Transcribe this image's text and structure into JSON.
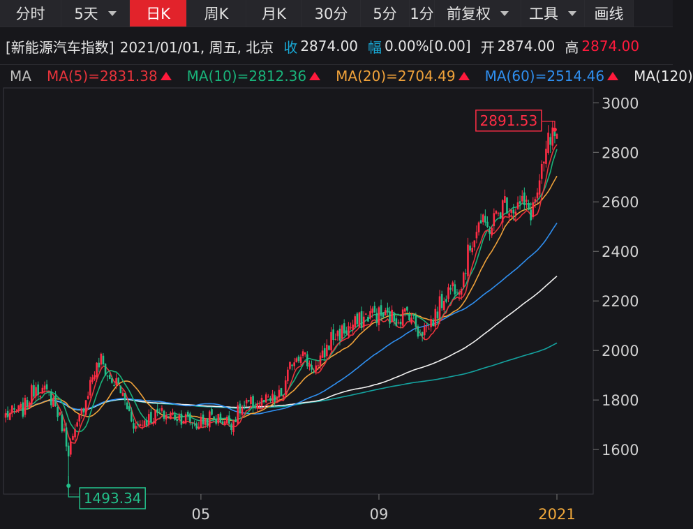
{
  "tabs": [
    {
      "label": "分时",
      "active": false,
      "dropdown": false
    },
    {
      "label": "5天",
      "active": false,
      "dropdown": true
    },
    {
      "label": "日K",
      "active": true,
      "dropdown": false
    },
    {
      "label": "周K",
      "active": false,
      "dropdown": false
    },
    {
      "label": "月K",
      "active": false,
      "dropdown": false
    },
    {
      "label": "30分",
      "active": false,
      "dropdown": false
    },
    {
      "label": "5分",
      "active": false,
      "dropdown": false
    },
    {
      "label": "1分",
      "active": false,
      "dropdown": false
    },
    {
      "label": "前复权",
      "active": false,
      "dropdown": true
    },
    {
      "label": "工具",
      "active": false,
      "dropdown": true
    },
    {
      "label": "画线",
      "active": false,
      "dropdown": false
    }
  ],
  "info": {
    "name": "[新能源汽车指数]",
    "datetime": "2021/01/01, 周五, 北京",
    "close_label": "收",
    "close": "2874.00",
    "change_label": "幅",
    "change": "0.00%[0.00]",
    "open_label": "开",
    "open": "2874.00",
    "high_label": "高",
    "high": "2874.00"
  },
  "ma_bar": {
    "label": "MA",
    "items": [
      {
        "text": "MA(5)=2831.38",
        "color": "#e8333b"
      },
      {
        "text": "MA(10)=2812.36",
        "color": "#19b37a"
      },
      {
        "text": "MA(20)=2704.49",
        "color": "#f0a23a"
      },
      {
        "text": "MA(60)=2514.46",
        "color": "#2f8ff0"
      },
      {
        "text": "MA(120)",
        "color": "#ececec"
      }
    ]
  },
  "colors": {
    "up": "#ff2d45",
    "down": "#23c08a",
    "ma5": "#e8333b",
    "ma10": "#19b37a",
    "ma20": "#f0a23a",
    "ma60": "#2f8ff0",
    "ma120": "#f2f2f2",
    "ma250": "#14a3a0",
    "grid": "#3a3a40",
    "axis_text": "#d2d2d2",
    "date_highlight": "#f2a93b"
  },
  "chart_data": {
    "type": "candlestick",
    "title": "新能源汽车指数",
    "ylim": [
      1420,
      3060
    ],
    "yticks": [
      1600,
      1800,
      2000,
      2200,
      2400,
      2600,
      2800,
      3000
    ],
    "xticks": [
      {
        "label": "05",
        "index": 90,
        "highlight": false
      },
      {
        "label": "09",
        "index": 172,
        "highlight": false
      },
      {
        "label": "2021",
        "index": 254,
        "highlight": true
      }
    ],
    "max_label": "2891.53",
    "max_value": 2891.53,
    "max_index": 253,
    "min_label": "1493.34",
    "min_value": 1493.34,
    "min_index": 29,
    "anchors": [
      [
        0,
        1740
      ],
      [
        8,
        1760
      ],
      [
        14,
        1860
      ],
      [
        18,
        1830
      ],
      [
        22,
        1800
      ],
      [
        26,
        1700
      ],
      [
        29,
        1600
      ],
      [
        32,
        1660
      ],
      [
        36,
        1780
      ],
      [
        40,
        1900
      ],
      [
        44,
        1960
      ],
      [
        48,
        1880
      ],
      [
        52,
        1860
      ],
      [
        56,
        1770
      ],
      [
        60,
        1690
      ],
      [
        64,
        1720
      ],
      [
        70,
        1740
      ],
      [
        76,
        1740
      ],
      [
        82,
        1730
      ],
      [
        88,
        1700
      ],
      [
        94,
        1730
      ],
      [
        100,
        1720
      ],
      [
        104,
        1710
      ],
      [
        108,
        1760
      ],
      [
        112,
        1780
      ],
      [
        118,
        1790
      ],
      [
        124,
        1800
      ],
      [
        128,
        1830
      ],
      [
        132,
        1960
      ],
      [
        136,
        2000
      ],
      [
        140,
        1940
      ],
      [
        144,
        1930
      ],
      [
        150,
        2050
      ],
      [
        156,
        2080
      ],
      [
        162,
        2110
      ],
      [
        168,
        2150
      ],
      [
        174,
        2140
      ],
      [
        180,
        2130
      ],
      [
        186,
        2160
      ],
      [
        190,
        2080
      ],
      [
        194,
        2090
      ],
      [
        198,
        2140
      ],
      [
        202,
        2220
      ],
      [
        206,
        2260
      ],
      [
        210,
        2280
      ],
      [
        214,
        2420
      ],
      [
        218,
        2520
      ],
      [
        222,
        2490
      ],
      [
        226,
        2540
      ],
      [
        230,
        2600
      ],
      [
        234,
        2580
      ],
      [
        238,
        2590
      ],
      [
        242,
        2560
      ],
      [
        246,
        2660
      ],
      [
        250,
        2840
      ],
      [
        254,
        2874
      ]
    ],
    "ma_end_values": {
      "MA5": 2831.38,
      "MA10": 2812.36,
      "MA20": 2704.49,
      "MA60": 2514.46,
      "MA120": 2300,
      "MA250": 2030
    },
    "volatility": 0.013
  }
}
